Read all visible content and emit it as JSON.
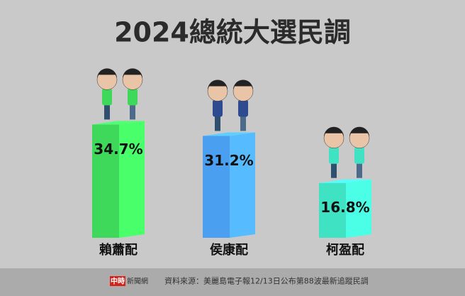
{
  "chart_data": {
    "type": "bar3d",
    "title": "2024總統大選民調",
    "categories": [
      "賴蕭配",
      "侯康配",
      "柯盈配"
    ],
    "values": [
      34.7,
      31.2,
      16.8
    ],
    "value_labels": [
      "34.7%",
      "31.2%",
      "16.8%"
    ],
    "colors": [
      "#3ed95a",
      "#4a9ff0",
      "#3fe3c3"
    ],
    "source": "資料來源：美麗島電子報12/13日公布第88波最新追蹤民調",
    "logo_mark": "中時",
    "logo_text": "新聞網"
  }
}
